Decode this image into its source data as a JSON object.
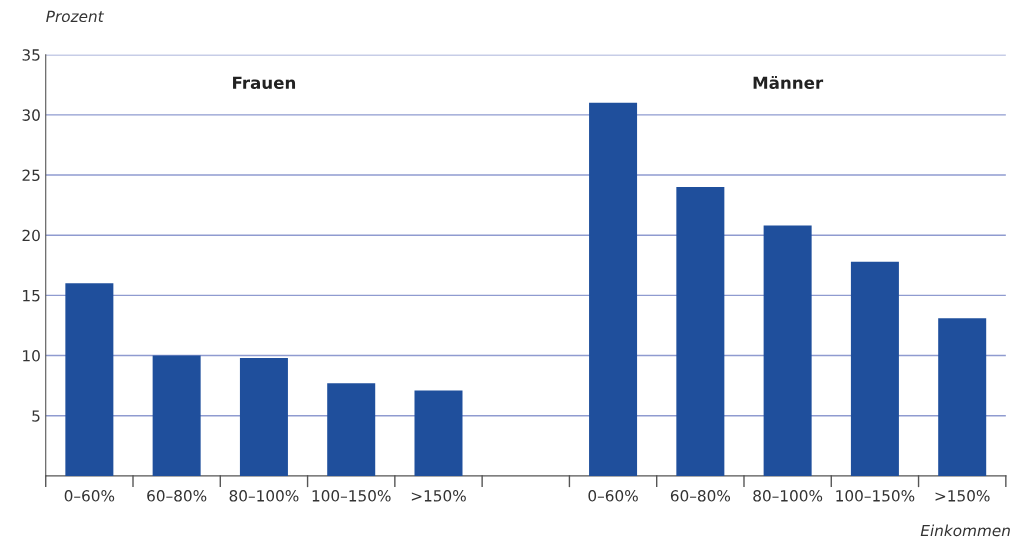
{
  "chart_data": {
    "type": "bar",
    "categories": [
      "0–60%",
      "60–80%",
      "80–100%",
      "100–150%",
      ">150%",
      null,
      "0–60%",
      "60–80%",
      "80–100%",
      "100–150%",
      ">150%"
    ],
    "values": [
      16,
      10,
      9.8,
      7.7,
      7.1,
      null,
      31,
      24,
      20.8,
      17.8,
      13.1
    ],
    "color": "#1f4f9c",
    "ylabel": "Prozent",
    "xlabel": "Einkommen",
    "annotations": [
      "Frauen",
      "Männer"
    ],
    "ylim": [
      0,
      35
    ],
    "yticks": [
      5,
      10,
      15,
      20,
      25,
      30,
      35
    ],
    "grid": "y"
  }
}
